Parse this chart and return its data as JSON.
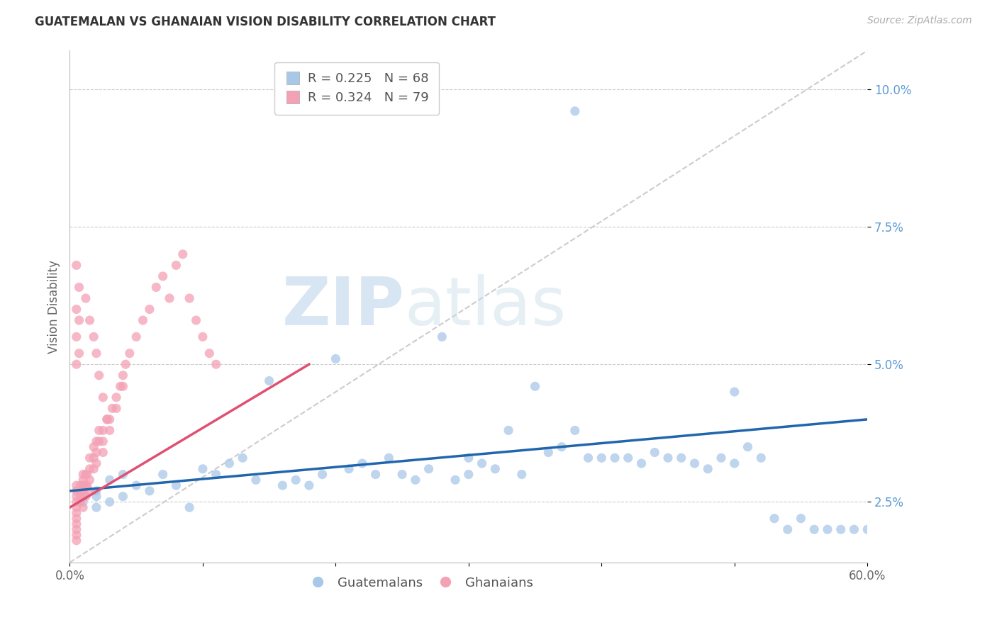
{
  "title": "GUATEMALAN VS GHANAIAN VISION DISABILITY CORRELATION CHART",
  "source": "Source: ZipAtlas.com",
  "xlabel_guatemalans": "Guatemalans",
  "xlabel_ghanaians": "Ghanaians",
  "ylabel": "Vision Disability",
  "xlim": [
    0.0,
    0.6
  ],
  "ylim": [
    0.014,
    0.107
  ],
  "ytick_vals": [
    0.025,
    0.05,
    0.075,
    0.1
  ],
  "ytick_labels": [
    "2.5%",
    "5.0%",
    "7.5%",
    "10.0%"
  ],
  "blue_color": "#a8c8e8",
  "blue_line_color": "#2166ac",
  "pink_color": "#f4a0b5",
  "pink_line_color": "#e05070",
  "diag_color": "#cccccc",
  "legend_r_blue": "R = 0.225",
  "legend_n_blue": "N = 68",
  "legend_r_pink": "R = 0.324",
  "legend_n_pink": "N = 79",
  "watermark_zip": "ZIP",
  "watermark_atlas": "atlas",
  "blue_line_x": [
    0.0,
    0.6
  ],
  "blue_line_y": [
    0.027,
    0.04
  ],
  "pink_line_x": [
    0.0,
    0.18
  ],
  "pink_line_y": [
    0.024,
    0.05
  ],
  "diag_line_x": [
    0.0,
    0.6
  ],
  "diag_line_y": [
    0.014,
    0.107
  ],
  "blue_scatter_x": [
    0.01,
    0.01,
    0.02,
    0.02,
    0.02,
    0.03,
    0.03,
    0.04,
    0.04,
    0.05,
    0.06,
    0.07,
    0.08,
    0.09,
    0.1,
    0.11,
    0.12,
    0.13,
    0.14,
    0.15,
    0.16,
    0.17,
    0.18,
    0.19,
    0.2,
    0.21,
    0.22,
    0.23,
    0.24,
    0.25,
    0.26,
    0.27,
    0.28,
    0.29,
    0.3,
    0.3,
    0.31,
    0.32,
    0.33,
    0.34,
    0.35,
    0.36,
    0.37,
    0.38,
    0.39,
    0.4,
    0.41,
    0.42,
    0.43,
    0.44,
    0.45,
    0.46,
    0.47,
    0.48,
    0.49,
    0.5,
    0.51,
    0.52,
    0.53,
    0.54,
    0.55,
    0.56,
    0.57,
    0.58,
    0.59,
    0.6,
    0.38,
    0.5
  ],
  "blue_scatter_y": [
    0.028,
    0.025,
    0.027,
    0.024,
    0.026,
    0.029,
    0.025,
    0.03,
    0.026,
    0.028,
    0.027,
    0.03,
    0.028,
    0.024,
    0.031,
    0.03,
    0.032,
    0.033,
    0.029,
    0.047,
    0.028,
    0.029,
    0.028,
    0.03,
    0.051,
    0.031,
    0.032,
    0.03,
    0.033,
    0.03,
    0.029,
    0.031,
    0.055,
    0.029,
    0.033,
    0.03,
    0.032,
    0.031,
    0.038,
    0.03,
    0.046,
    0.034,
    0.035,
    0.038,
    0.033,
    0.033,
    0.033,
    0.033,
    0.032,
    0.034,
    0.033,
    0.033,
    0.032,
    0.031,
    0.033,
    0.032,
    0.035,
    0.033,
    0.022,
    0.02,
    0.022,
    0.02,
    0.02,
    0.02,
    0.02,
    0.02,
    0.096,
    0.045
  ],
  "pink_scatter_x": [
    0.005,
    0.005,
    0.005,
    0.005,
    0.005,
    0.005,
    0.005,
    0.005,
    0.005,
    0.005,
    0.005,
    0.008,
    0.008,
    0.008,
    0.008,
    0.01,
    0.01,
    0.01,
    0.01,
    0.01,
    0.01,
    0.012,
    0.012,
    0.012,
    0.013,
    0.013,
    0.015,
    0.015,
    0.015,
    0.015,
    0.018,
    0.018,
    0.018,
    0.02,
    0.02,
    0.02,
    0.022,
    0.022,
    0.025,
    0.025,
    0.025,
    0.028,
    0.03,
    0.03,
    0.032,
    0.035,
    0.035,
    0.038,
    0.04,
    0.04,
    0.042,
    0.045,
    0.05,
    0.055,
    0.06,
    0.065,
    0.07,
    0.075,
    0.08,
    0.085,
    0.09,
    0.095,
    0.1,
    0.105,
    0.11,
    0.012,
    0.015,
    0.018,
    0.02,
    0.022,
    0.025,
    0.028,
    0.005,
    0.005,
    0.005,
    0.005,
    0.007,
    0.007,
    0.007
  ],
  "pink_scatter_y": [
    0.028,
    0.027,
    0.026,
    0.025,
    0.024,
    0.023,
    0.022,
    0.021,
    0.02,
    0.019,
    0.018,
    0.028,
    0.027,
    0.026,
    0.025,
    0.03,
    0.029,
    0.028,
    0.027,
    0.026,
    0.024,
    0.03,
    0.028,
    0.026,
    0.03,
    0.028,
    0.033,
    0.031,
    0.029,
    0.027,
    0.035,
    0.033,
    0.031,
    0.036,
    0.034,
    0.032,
    0.038,
    0.036,
    0.038,
    0.036,
    0.034,
    0.04,
    0.04,
    0.038,
    0.042,
    0.044,
    0.042,
    0.046,
    0.048,
    0.046,
    0.05,
    0.052,
    0.055,
    0.058,
    0.06,
    0.064,
    0.066,
    0.062,
    0.068,
    0.07,
    0.062,
    0.058,
    0.055,
    0.052,
    0.05,
    0.062,
    0.058,
    0.055,
    0.052,
    0.048,
    0.044,
    0.04,
    0.068,
    0.06,
    0.055,
    0.05,
    0.064,
    0.058,
    0.052
  ]
}
